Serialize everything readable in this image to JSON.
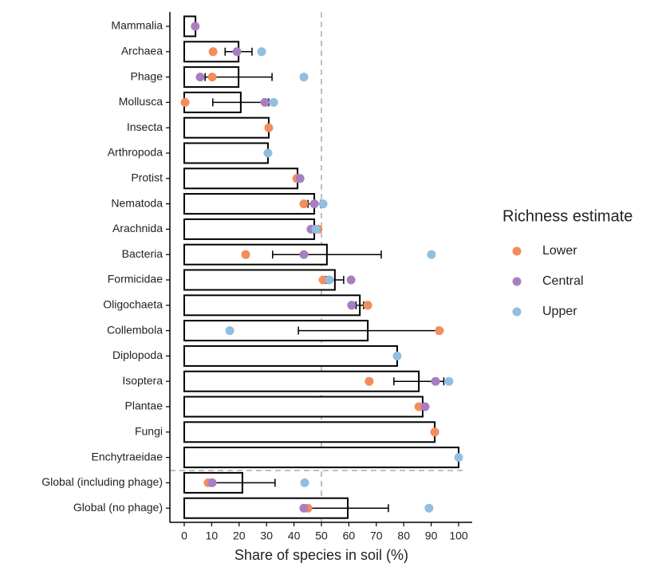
{
  "chart_data": {
    "type": "hbar",
    "x_label": "Share of species in soil (%)",
    "categories": [
      "Mammalia",
      "Archaea",
      "Phage",
      "Mollusca",
      "Insecta",
      "Arthropoda",
      "Protist",
      "Nematoda",
      "Arachnida",
      "Bacteria",
      "Formicidae",
      "Oligochaeta",
      "Collembola",
      "Diplopoda",
      "Isoptera",
      "Plantae",
      "Fungi",
      "Enchytraeidae",
      "Global (including phage)",
      "Global (no phage)"
    ],
    "values": [
      4.1,
      19.8,
      19.8,
      20.6,
      30.8,
      30.5,
      41.3,
      47.4,
      47.4,
      52,
      54.9,
      64,
      66.9,
      77.6,
      85.5,
      86.9,
      91.3,
      100,
      21.2,
      59.6
    ],
    "errors": [
      null,
      4.9,
      12.2,
      10.2,
      null,
      null,
      null,
      2.3,
      null,
      19.8,
      3.2,
      1.4,
      25.3,
      null,
      9.1,
      null,
      null,
      null,
      11.9,
      14.8
    ],
    "series": [
      {
        "name": "Lower",
        "color": "#f28e5c",
        "values": [
          null,
          10.5,
          10.2,
          0.3,
          30.8,
          null,
          41,
          43.6,
          48.8,
          22.4,
          50.6,
          66.9,
          93,
          null,
          67.4,
          85.5,
          91.3,
          null,
          8.7,
          45.1
        ]
      },
      {
        "name": "Central",
        "color": "#a77fc1",
        "values": [
          4,
          19.2,
          5.8,
          29.4,
          null,
          null,
          42.2,
          47.4,
          46.2,
          43.6,
          60.8,
          61,
          null,
          null,
          91.6,
          87.8,
          null,
          null,
          10.2,
          43.6
        ]
      },
      {
        "name": "Upper",
        "color": "#92bfdf",
        "values": [
          null,
          28.2,
          43.6,
          32.6,
          null,
          30.5,
          null,
          50.6,
          48,
          90.1,
          52.9,
          null,
          16.6,
          77.6,
          96.5,
          null,
          null,
          100,
          43.9,
          89.2
        ]
      }
    ],
    "legend_title": "Richness estimate",
    "reference_x": 50,
    "xlim": [
      0,
      100
    ],
    "xticks": [
      0,
      10,
      20,
      30,
      40,
      50,
      60,
      70,
      80,
      90,
      100
    ]
  }
}
